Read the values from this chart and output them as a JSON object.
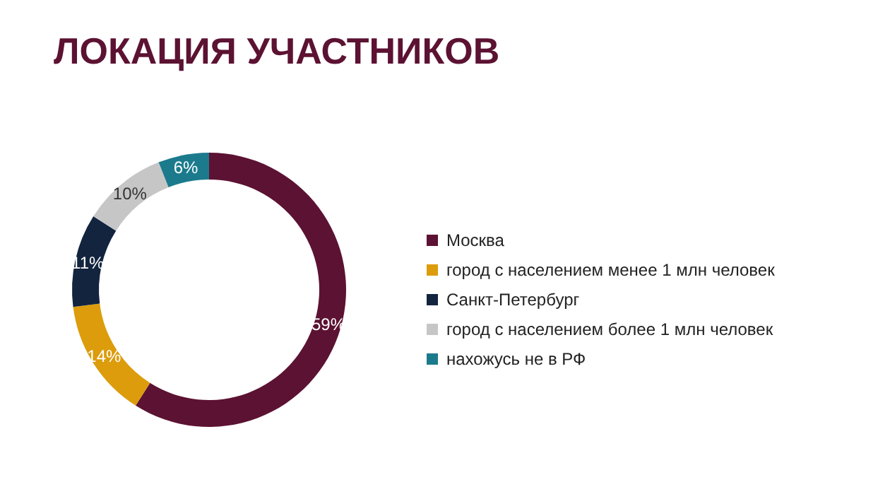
{
  "chart_data": {
    "type": "donut",
    "title": "ЛОКАЦИЯ УЧАСТНИКОВ",
    "categories": [
      "Москва",
      "город с населением менее 1 млн человек",
      "Санкт-Петербург",
      "город с населением более 1 млн человек",
      "нахожусь не в РФ"
    ],
    "values": [
      59,
      14,
      11,
      10,
      6
    ],
    "value_labels": [
      "59%",
      "14%",
      "11%",
      "10%",
      "6%"
    ],
    "colors": [
      "#5c1232",
      "#dc9c0c",
      "#13243f",
      "#c6c6c6",
      "#1b7b8c"
    ],
    "legend": "right"
  }
}
